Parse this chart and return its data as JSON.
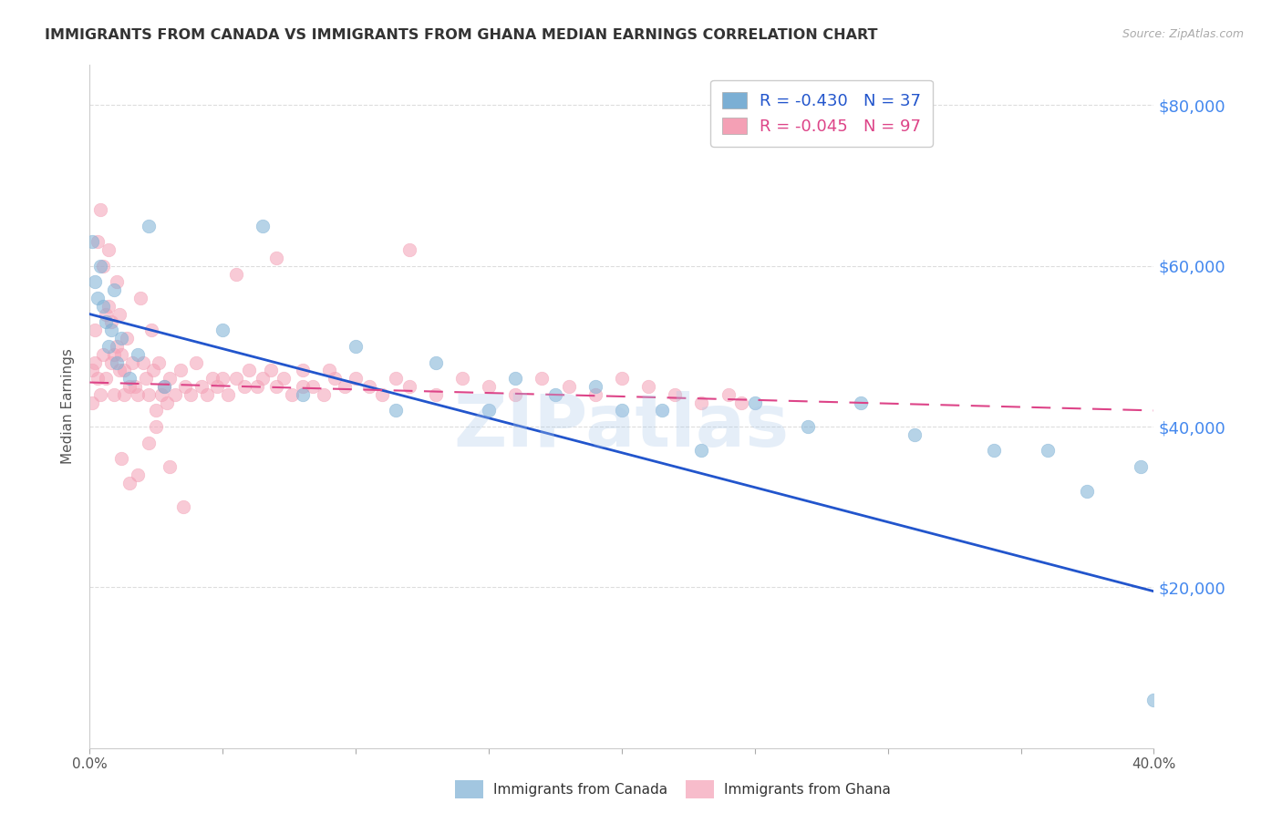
{
  "title": "IMMIGRANTS FROM CANADA VS IMMIGRANTS FROM GHANA MEDIAN EARNINGS CORRELATION CHART",
  "source": "Source: ZipAtlas.com",
  "ylabel": "Median Earnings",
  "xmin": 0.0,
  "xmax": 0.4,
  "ymin": 0,
  "ymax": 85000,
  "yticks": [
    0,
    20000,
    40000,
    60000,
    80000
  ],
  "ytick_labels": [
    "",
    "$20,000",
    "$40,000",
    "$60,000",
    "$80,000"
  ],
  "xticks": [
    0.0,
    0.05,
    0.1,
    0.15,
    0.2,
    0.25,
    0.3,
    0.35,
    0.4
  ],
  "canada_color": "#7bafd4",
  "ghana_color": "#f4a0b5",
  "canada_line_color": "#2255cc",
  "ghana_line_color": "#dd4488",
  "canada_R": -0.43,
  "canada_N": 37,
  "ghana_R": -0.045,
  "ghana_N": 97,
  "legend_label_canada": "Immigrants from Canada",
  "legend_label_ghana": "Immigrants from Ghana",
  "canada_trend_x0": 0.0,
  "canada_trend_y0": 54000,
  "canada_trend_x1": 0.4,
  "canada_trend_y1": 19500,
  "ghana_trend_x0": 0.0,
  "ghana_trend_y0": 45500,
  "ghana_trend_x1": 0.4,
  "ghana_trend_y1": 42000,
  "canada_x": [
    0.001,
    0.002,
    0.003,
    0.004,
    0.005,
    0.006,
    0.007,
    0.008,
    0.009,
    0.01,
    0.012,
    0.015,
    0.018,
    0.022,
    0.028,
    0.05,
    0.065,
    0.08,
    0.1,
    0.115,
    0.13,
    0.15,
    0.16,
    0.175,
    0.19,
    0.2,
    0.215,
    0.23,
    0.25,
    0.27,
    0.29,
    0.31,
    0.34,
    0.36,
    0.375,
    0.395,
    0.4
  ],
  "canada_y": [
    63000,
    58000,
    56000,
    60000,
    55000,
    53000,
    50000,
    52000,
    57000,
    48000,
    51000,
    46000,
    49000,
    65000,
    45000,
    52000,
    65000,
    44000,
    50000,
    42000,
    48000,
    42000,
    46000,
    44000,
    45000,
    42000,
    42000,
    37000,
    43000,
    40000,
    43000,
    39000,
    37000,
    37000,
    32000,
    35000,
    6000
  ],
  "ghana_x": [
    0.001,
    0.001,
    0.002,
    0.002,
    0.003,
    0.003,
    0.004,
    0.004,
    0.005,
    0.005,
    0.006,
    0.006,
    0.007,
    0.007,
    0.008,
    0.008,
    0.009,
    0.009,
    0.01,
    0.01,
    0.011,
    0.011,
    0.012,
    0.013,
    0.013,
    0.014,
    0.015,
    0.016,
    0.017,
    0.018,
    0.019,
    0.02,
    0.021,
    0.022,
    0.023,
    0.024,
    0.025,
    0.026,
    0.027,
    0.028,
    0.029,
    0.03,
    0.032,
    0.034,
    0.036,
    0.038,
    0.04,
    0.042,
    0.044,
    0.046,
    0.048,
    0.05,
    0.052,
    0.055,
    0.058,
    0.06,
    0.063,
    0.065,
    0.068,
    0.07,
    0.073,
    0.076,
    0.08,
    0.084,
    0.088,
    0.092,
    0.096,
    0.1,
    0.105,
    0.11,
    0.115,
    0.12,
    0.13,
    0.14,
    0.15,
    0.16,
    0.17,
    0.18,
    0.19,
    0.2,
    0.21,
    0.22,
    0.23,
    0.24,
    0.245,
    0.12,
    0.08,
    0.055,
    0.07,
    0.09,
    0.035,
    0.025,
    0.015,
    0.012,
    0.018,
    0.022,
    0.03
  ],
  "ghana_y": [
    47000,
    43000,
    48000,
    52000,
    46000,
    63000,
    44000,
    67000,
    60000,
    49000,
    54000,
    46000,
    62000,
    55000,
    53000,
    48000,
    49000,
    44000,
    50000,
    58000,
    47000,
    54000,
    49000,
    47000,
    44000,
    51000,
    45000,
    48000,
    45000,
    44000,
    56000,
    48000,
    46000,
    44000,
    52000,
    47000,
    42000,
    48000,
    44000,
    45000,
    43000,
    46000,
    44000,
    47000,
    45000,
    44000,
    48000,
    45000,
    44000,
    46000,
    45000,
    46000,
    44000,
    46000,
    45000,
    47000,
    45000,
    46000,
    47000,
    45000,
    46000,
    44000,
    47000,
    45000,
    44000,
    46000,
    45000,
    46000,
    45000,
    44000,
    46000,
    45000,
    44000,
    46000,
    45000,
    44000,
    46000,
    45000,
    44000,
    46000,
    45000,
    44000,
    43000,
    44000,
    43000,
    62000,
    45000,
    59000,
    61000,
    47000,
    30000,
    40000,
    33000,
    36000,
    34000,
    38000,
    35000
  ],
  "watermark": "ZIPatlas",
  "background_color": "#ffffff",
  "grid_color": "#dddddd"
}
